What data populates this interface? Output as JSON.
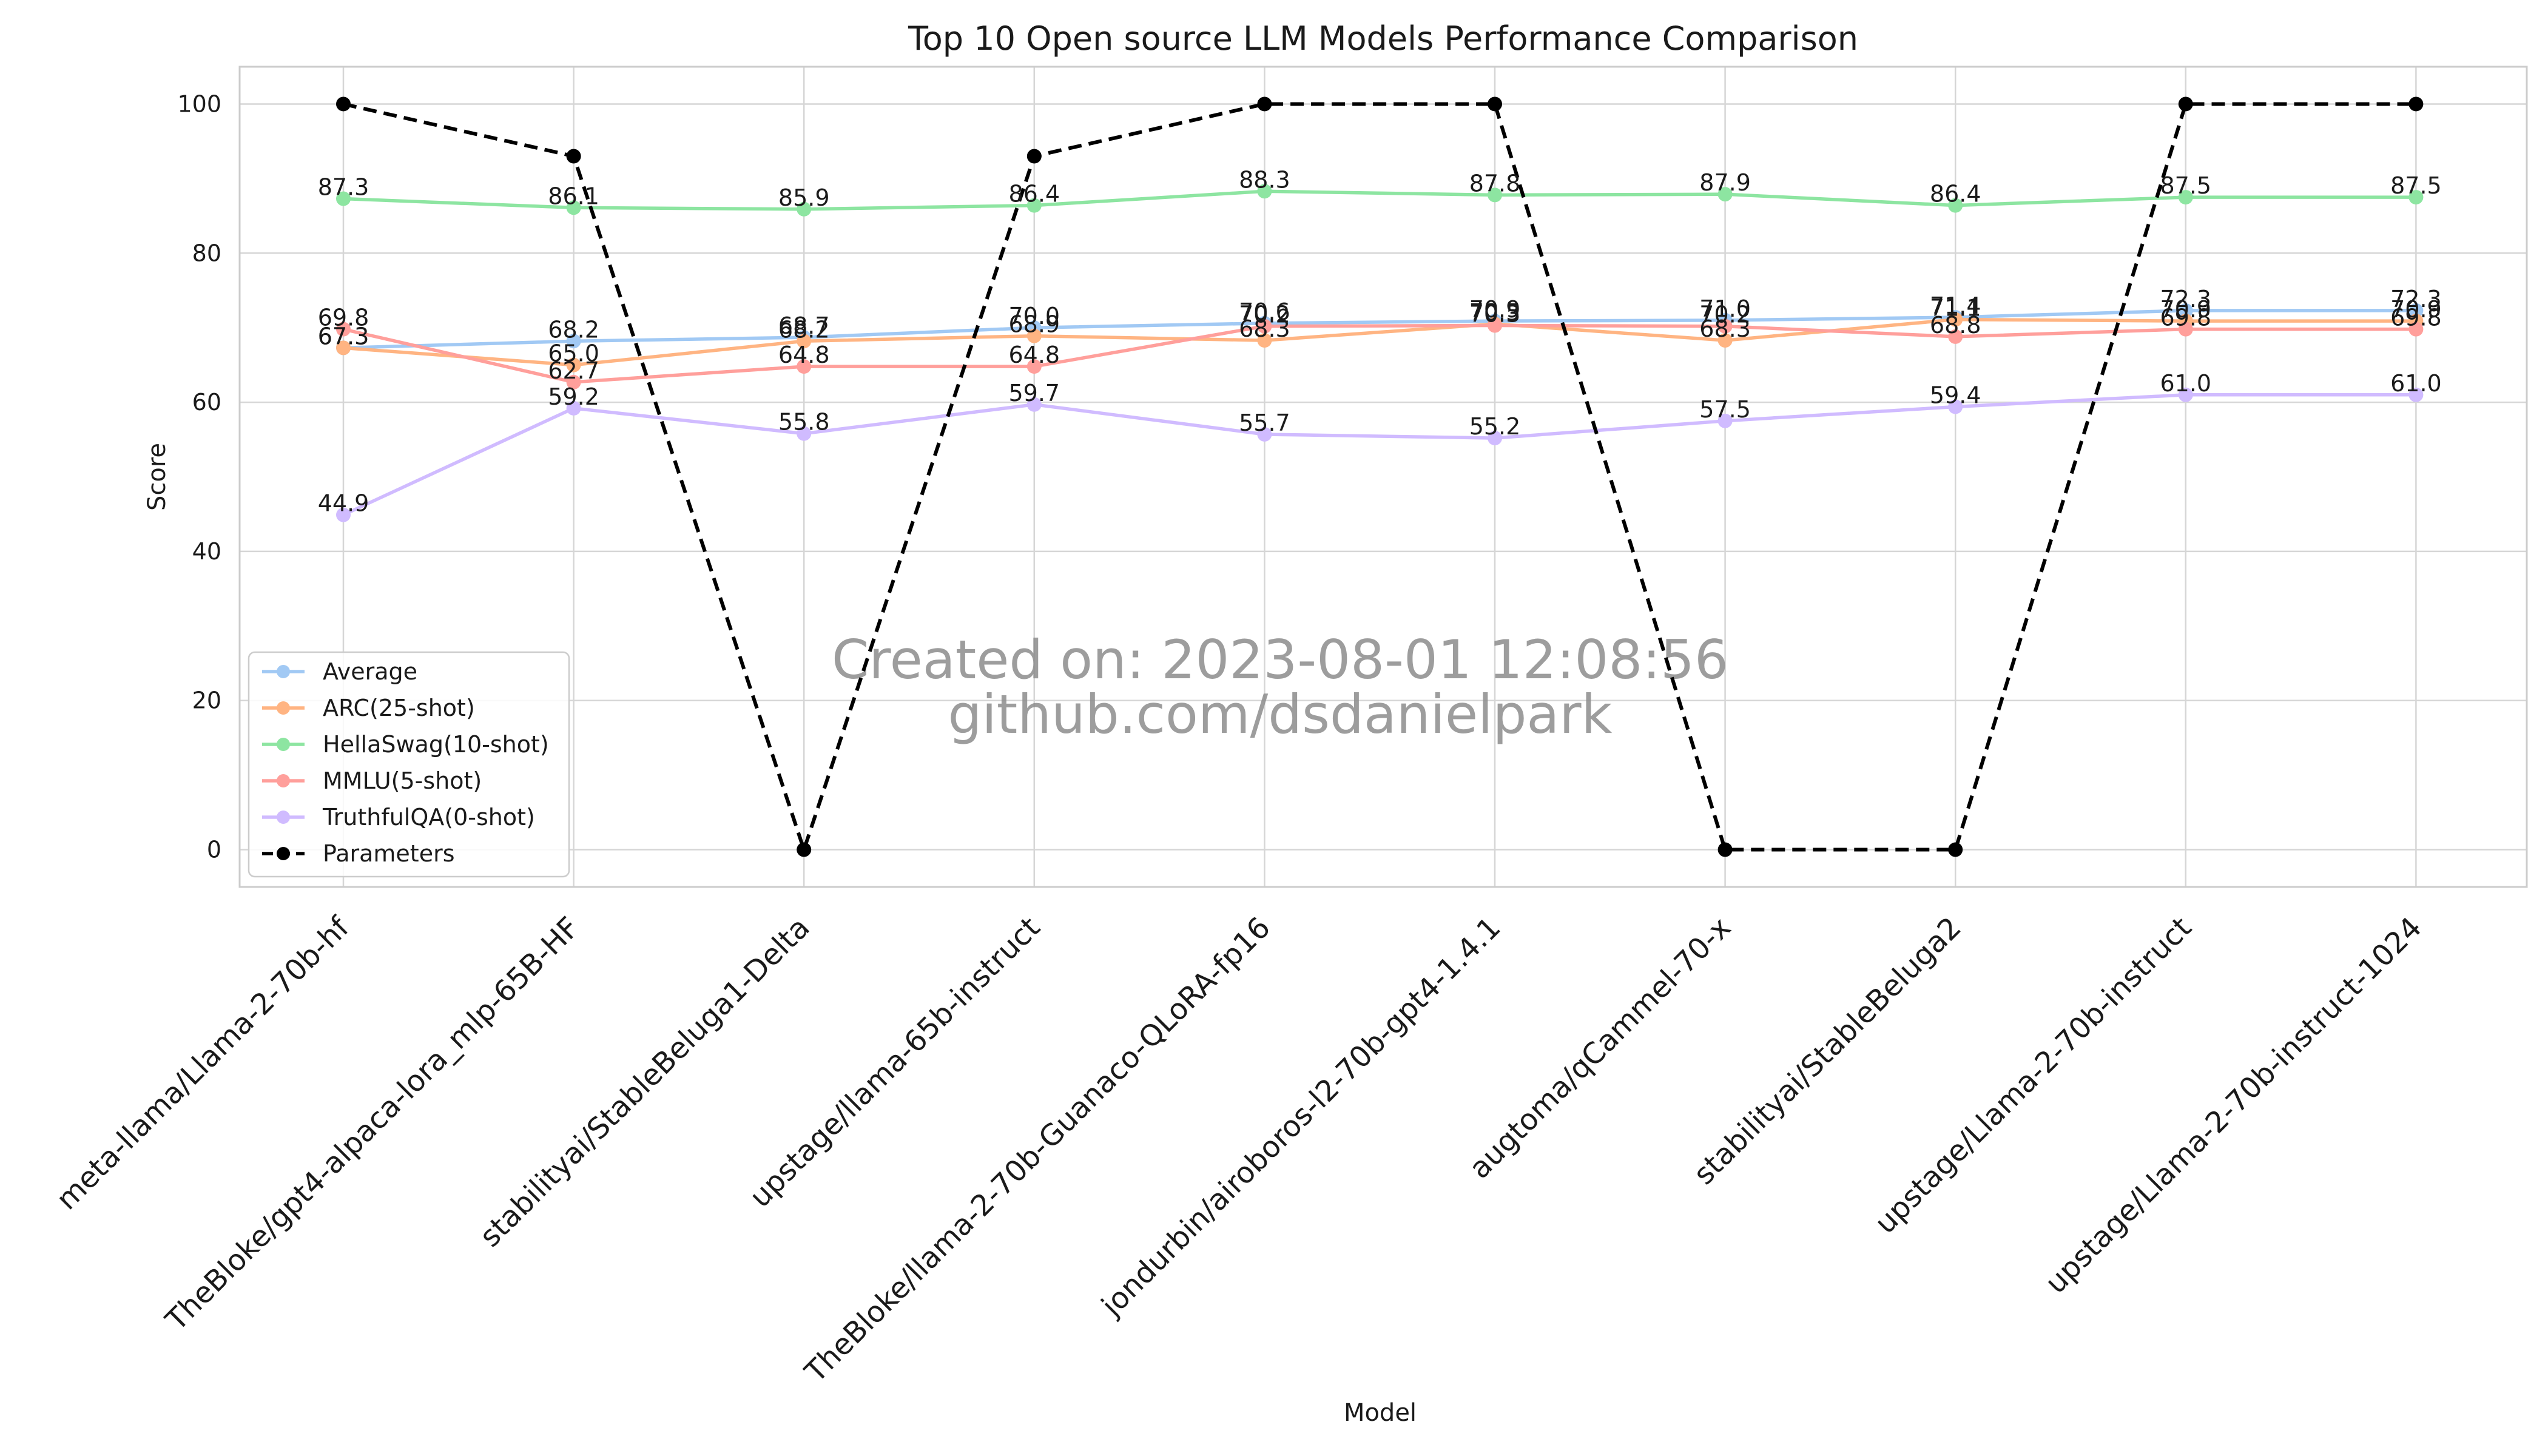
{
  "chart_data": {
    "type": "line",
    "title": "Top 10 Open source LLM Models Performance Comparison",
    "xlabel": "Model",
    "ylabel": "Score",
    "ylim": [
      -5,
      105
    ],
    "yticks": [
      0,
      20,
      40,
      60,
      80,
      100
    ],
    "grid": true,
    "legend_position": "lower-left",
    "categories": [
      "meta-llama/Llama-2-70b-hf",
      "TheBloke/gpt4-alpaca-lora_mlp-65B-HF",
      "stabilityai/StableBeluga1-Delta",
      "upstage/llama-65b-instruct",
      "TheBloke/llama-2-70b-Guanaco-QLoRA-fp16",
      "jondurbin/airoboros-l2-70b-gpt4-1.4.1",
      "augtoma/qCammel-70-x",
      "stabilityai/StableBeluga2",
      "upstage/Llama-2-70b-instruct",
      "upstage/Llama-2-70b-instruct-1024"
    ],
    "series": [
      {
        "name": "Average",
        "color": "#a1c9f4",
        "style": "solid",
        "values": [
          67.3,
          68.2,
          68.7,
          70.0,
          70.6,
          70.9,
          71.0,
          71.4,
          72.3,
          72.3
        ],
        "labeled": true
      },
      {
        "name": "ARC(25-shot)",
        "color": "#ffb482",
        "style": "solid",
        "values": [
          67.3,
          65.0,
          68.2,
          68.9,
          68.3,
          70.5,
          68.3,
          71.1,
          70.9,
          70.9
        ],
        "labeled": true
      },
      {
        "name": "HellaSwag(10-shot)",
        "color": "#8de5a1",
        "style": "solid",
        "values": [
          87.3,
          86.1,
          85.9,
          86.4,
          88.3,
          87.8,
          87.9,
          86.4,
          87.5,
          87.5
        ],
        "labeled": true
      },
      {
        "name": "MMLU(5-shot)",
        "color": "#ff9f9b",
        "style": "solid",
        "values": [
          69.8,
          62.7,
          64.8,
          64.8,
          70.2,
          70.3,
          70.2,
          68.8,
          69.8,
          69.8
        ],
        "labeled": true
      },
      {
        "name": "TruthfulQA(0-shot)",
        "color": "#d0bbff",
        "style": "solid",
        "values": [
          44.9,
          59.2,
          55.8,
          59.7,
          55.7,
          55.2,
          57.5,
          59.4,
          61.0,
          61.0
        ],
        "labeled": true
      },
      {
        "name": "Parameters",
        "color": "#000000",
        "style": "dashed",
        "values": [
          100,
          93,
          0,
          93,
          100,
          100,
          0,
          0,
          100,
          100
        ],
        "labeled": false
      }
    ],
    "watermark": [
      "Created on: 2023-08-01 12:08:56",
      "github.com/dsdanielpark"
    ]
  }
}
